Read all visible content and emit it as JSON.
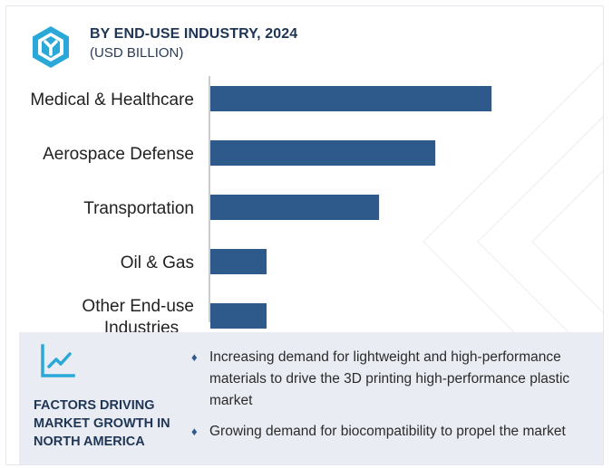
{
  "header": {
    "logo_icon": "hexagon-y-logo-icon",
    "title": "BY END-USE INDUSTRY, 2024",
    "subtitle": "(USD BILLION)"
  },
  "chart_data": {
    "type": "bar",
    "orientation": "horizontal",
    "title": "BY END-USE INDUSTRY, 2024",
    "subtitle": "(USD BILLION)",
    "categories": [
      [
        "Medical & Healthcare"
      ],
      [
        "Aerospace  Defense"
      ],
      [
        "Transportation"
      ],
      [
        "Oil & Gas"
      ],
      [
        "Other End-use",
        "Industries"
      ]
    ],
    "values": [
      10.0,
      8.0,
      6.0,
      2.0,
      2.0
    ],
    "xlim": [
      0,
      11.8
    ],
    "bar_color": "#2d5a8a",
    "axis_color": "#bbbbbb",
    "grid": false,
    "value_labels": false,
    "xlabel": "",
    "ylabel": ""
  },
  "factors_panel": {
    "icon": "line-chart-icon",
    "title": "FACTORS DRIVING MARKET GROWTH IN NORTH AMERICA",
    "bullet": "♦",
    "items": [
      "Increasing demand for lightweight and high-performance materials to drive the 3D printing high-performance plastic market",
      "Growing demand for biocompatibility to propel the market"
    ]
  },
  "colors": {
    "title": "#1f3556",
    "bar": "#2d5a8a",
    "logo": "#2aa8d8",
    "panel_bg": "#e9ecf2",
    "bullet": "#2d5b8e"
  }
}
